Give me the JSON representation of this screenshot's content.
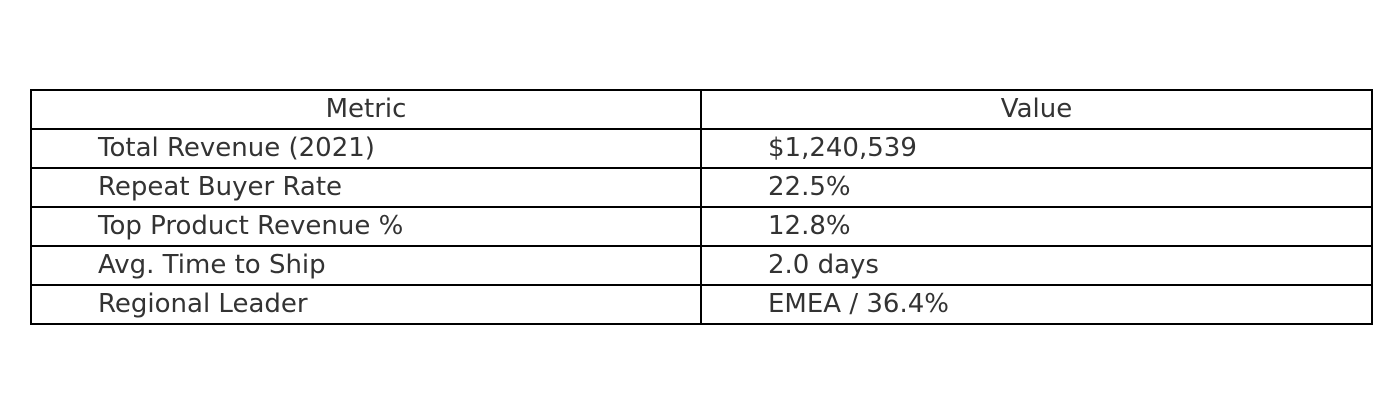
{
  "chart_data": {
    "type": "table",
    "columns": [
      "Metric",
      "Value"
    ],
    "rows": [
      [
        "Total Revenue (2021)",
        "$1,240,539"
      ],
      [
        "Repeat Buyer Rate",
        "22.5%"
      ],
      [
        "Top Product Revenue %",
        "12.8%"
      ],
      [
        "Avg. Time to Ship",
        "2.0 days"
      ],
      [
        "Regional Leader",
        "EMEA / 36.4%"
      ]
    ]
  },
  "colors": {
    "text": "#333333",
    "border": "#000000",
    "background": "#ffffff"
  }
}
